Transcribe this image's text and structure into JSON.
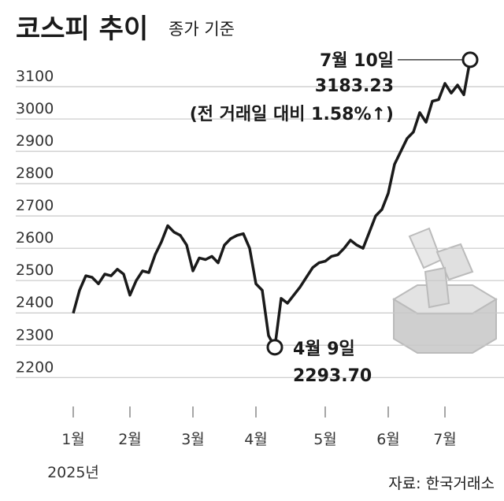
{
  "chart_data": {
    "type": "line",
    "title": "코스피 추이",
    "subtitle": "종가 기준",
    "values": [
      2399,
      2470,
      2515,
      2510,
      2490,
      2520,
      2515,
      2535,
      2520,
      2455,
      2500,
      2530,
      2525,
      2580,
      2620,
      2670,
      2650,
      2640,
      2610,
      2530,
      2570,
      2565,
      2575,
      2555,
      2610,
      2630,
      2640,
      2645,
      2600,
      2490,
      2470,
      2330,
      2293.7,
      2445,
      2430,
      2455,
      2480,
      2510,
      2540,
      2555,
      2560,
      2575,
      2580,
      2600,
      2625,
      2610,
      2600,
      2650,
      2700,
      2720,
      2770,
      2860,
      2900,
      2940,
      2960,
      3020,
      2990,
      3055,
      3060,
      3110,
      3080,
      3105,
      3075,
      3183.23
    ],
    "color": "#1a1a1a",
    "xlim": [
      0,
      63
    ],
    "xticks": [
      {
        "value": 0,
        "label": "1월"
      },
      {
        "value": 9,
        "label": "2월"
      },
      {
        "value": 19,
        "label": "3월"
      },
      {
        "value": 29,
        "label": "4월"
      },
      {
        "value": 40,
        "label": "5월"
      },
      {
        "value": 50,
        "label": "6월"
      },
      {
        "value": 59,
        "label": "7월"
      }
    ],
    "year_label": "2025년",
    "ylim": [
      2200,
      3200
    ],
    "yticks": [
      2200,
      2300,
      2400,
      2500,
      2600,
      2700,
      2800,
      2900,
      3000,
      3100
    ],
    "grid": true,
    "annotations": {
      "high_date": "7월 10일",
      "high_value": "3183.23",
      "high_change": "(전 거래일 대비 1.58%↑)",
      "low_date": "4월 9일",
      "low_value": "2293.70"
    },
    "source": "자료: 한국거래소"
  }
}
